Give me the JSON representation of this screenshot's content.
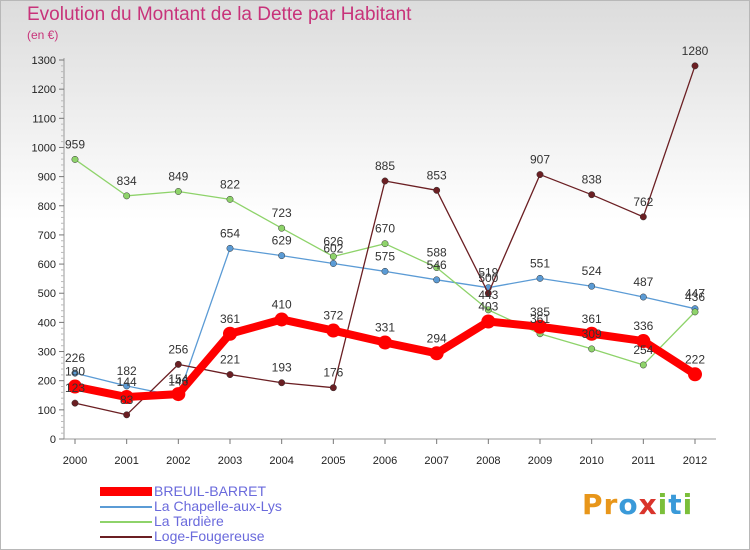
{
  "header": {
    "title": "Evolution du Montant de la Dette par Habitant",
    "subtitle": "(en €)"
  },
  "logo": {
    "text": "Proxiti"
  },
  "chart_data": {
    "type": "line",
    "title": "Evolution du Montant de la Dette par Habitant",
    "subtitle": "(en €)",
    "xlabel": "",
    "ylabel": "",
    "x": [
      2000,
      2001,
      2002,
      2003,
      2004,
      2005,
      2006,
      2007,
      2008,
      2009,
      2010,
      2011,
      2012
    ],
    "ylim": [
      0,
      1300
    ],
    "yticks": [
      0,
      100,
      200,
      300,
      400,
      500,
      600,
      700,
      800,
      900,
      1000,
      1100,
      1200,
      1300
    ],
    "grid": false,
    "legend_position": "bottom-left",
    "series": [
      {
        "name": "BREUIL-BARRET",
        "color": "#ff0000",
        "values": [
          180,
          144,
          154,
          361,
          410,
          372,
          331,
          294,
          403,
          385,
          361,
          336,
          222
        ]
      },
      {
        "name": "La Chapelle-aux-Lys",
        "color": "#5b9bd5",
        "values": [
          226,
          182,
          146,
          654,
          629,
          602,
          575,
          546,
          519,
          551,
          524,
          487,
          447
        ]
      },
      {
        "name": "La Tardière",
        "color": "#8ed36a",
        "values": [
          959,
          834,
          849,
          822,
          723,
          626,
          670,
          588,
          443,
          361,
          309,
          254,
          436
        ]
      },
      {
        "name": "Loge-Fougereuse",
        "color": "#6b1f23",
        "values": [
          123,
          83,
          256,
          221,
          193,
          176,
          885,
          853,
          500,
          907,
          838,
          762,
          1280
        ]
      }
    ]
  }
}
